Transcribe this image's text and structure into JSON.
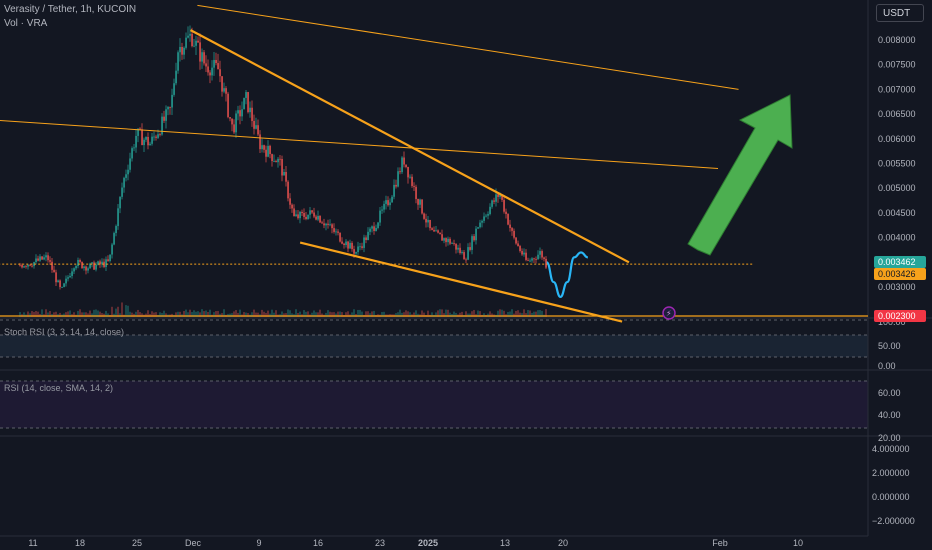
{
  "header": {
    "title": "Verasity / Tether, 1h, KUCOIN",
    "volume_label": "Vol · VRA",
    "currency_button": "USDT"
  },
  "indicators": {
    "stoch_rsi_label": "Stoch RSI (3, 3, 14, 14, close)",
    "rsi_label": "RSI (14, close, SMA, 14, 2)"
  },
  "colors": {
    "background": "#131722",
    "candle_up": "#26a69a",
    "candle_down": "#ef5350",
    "trendline": "#f7a21b",
    "projection_curve": "#29b6f6",
    "arrow": "#4caf50",
    "last_price": "#26a69a",
    "marker_price": "#f7a21b",
    "support_price": "#f23645"
  },
  "chart_data": {
    "type": "line",
    "title": "Verasity / Tether, 1h, KUCOIN",
    "xlabel": "",
    "ylabel": "",
    "x_ticks": [
      "11",
      "18",
      "25",
      "Dec",
      "9",
      "16",
      "23",
      "2025",
      "13",
      "20",
      "Feb",
      "10"
    ],
    "price_axis": {
      "ticks": [
        "0.008000",
        "0.007500",
        "0.007000",
        "0.006500",
        "0.006000",
        "0.005500",
        "0.005000",
        "0.004500",
        "0.004000",
        "0.003500",
        "0.003000"
      ],
      "ylim": [
        0.0023,
        0.0083
      ]
    },
    "price_tags": [
      {
        "label": "last",
        "value": "0.003462",
        "color": "#26a69a"
      },
      {
        "label": "marker",
        "value": "0.003426",
        "color": "#f7a21b"
      },
      {
        "label": "support",
        "value": "0.002300",
        "color": "#f23645"
      }
    ],
    "stoch_rsi_axis": [
      "100.00",
      "50.00",
      "0.00"
    ],
    "rsi_axis": [
      "60.00",
      "40.00",
      "20.00"
    ],
    "bottom_axis": [
      "4.000000",
      "2.000000",
      "0.000000",
      "−2.000000"
    ],
    "price_series": [
      {
        "x": "Nov 9",
        "y": 0.00345
      },
      {
        "x": "Nov 11",
        "y": 0.0035
      },
      {
        "x": "Nov 13",
        "y": 0.0036
      },
      {
        "x": "Nov 15",
        "y": 0.0029
      },
      {
        "x": "Nov 17",
        "y": 0.0035
      },
      {
        "x": "Nov 19",
        "y": 0.0034
      },
      {
        "x": "Nov 22",
        "y": 0.0035
      },
      {
        "x": "Nov 24",
        "y": 0.0051
      },
      {
        "x": "Nov 26",
        "y": 0.0061
      },
      {
        "x": "Nov 28",
        "y": 0.0059
      },
      {
        "x": "Dec 1",
        "y": 0.0066
      },
      {
        "x": "Dec 2",
        "y": 0.0078
      },
      {
        "x": "Dec 4",
        "y": 0.0081
      },
      {
        "x": "Dec 6",
        "y": 0.0075
      },
      {
        "x": "Dec 8",
        "y": 0.0074
      },
      {
        "x": "Dec 10",
        "y": 0.0062
      },
      {
        "x": "Dec 12",
        "y": 0.0068
      },
      {
        "x": "Dec 14",
        "y": 0.0059
      },
      {
        "x": "Dec 17",
        "y": 0.0055
      },
      {
        "x": "Dec 19",
        "y": 0.0044
      },
      {
        "x": "Dec 22",
        "y": 0.0045
      },
      {
        "x": "Dec 25",
        "y": 0.0041
      },
      {
        "x": "Dec 28",
        "y": 0.0037
      },
      {
        "x": "Dec 31",
        "y": 0.0043
      },
      {
        "x": "Jan 2",
        "y": 0.0048
      },
      {
        "x": "Jan 4",
        "y": 0.0056
      },
      {
        "x": "Jan 6",
        "y": 0.0048
      },
      {
        "x": "Jan 8",
        "y": 0.0041
      },
      {
        "x": "Jan 11",
        "y": 0.0039
      },
      {
        "x": "Jan 13",
        "y": 0.0036
      },
      {
        "x": "Jan 15",
        "y": 0.0043
      },
      {
        "x": "Jan 18",
        "y": 0.0049
      },
      {
        "x": "Jan 20",
        "y": 0.004
      },
      {
        "x": "Jan 22",
        "y": 0.0035
      },
      {
        "x": "Jan 24",
        "y": 0.0037
      },
      {
        "x": "Jan 25",
        "y": 0.0034
      }
    ],
    "projection_curve": [
      {
        "x": "Jan 25",
        "y": 0.0035
      },
      {
        "x": "Jan 26",
        "y": 0.0031
      },
      {
        "x": "Jan 27",
        "y": 0.0028
      },
      {
        "x": "Jan 28",
        "y": 0.0031
      },
      {
        "x": "Jan 29",
        "y": 0.0036
      },
      {
        "x": "Jan 30",
        "y": 0.0037
      },
      {
        "x": "Jan 31",
        "y": 0.0036
      }
    ],
    "trendlines": [
      {
        "from": {
          "x": "Dec 4",
          "y": 0.0082
        },
        "to": {
          "x": "Feb 6",
          "y": 0.0035
        }
      },
      {
        "from": {
          "x": "Dec 20",
          "y": 0.0039
        },
        "to": {
          "x": "Feb 5",
          "y": 0.0023
        }
      },
      {
        "from": {
          "x": "Nov 3",
          "y": 0.0064
        },
        "to": {
          "x": "Feb 19",
          "y": 0.0054
        }
      },
      {
        "from": {
          "x": "Dec 5",
          "y": 0.0087
        },
        "to": {
          "x": "Feb 22",
          "y": 0.007
        }
      },
      {
        "from": {
          "x": "Nov 3",
          "y": 0.003462
        },
        "to": {
          "x": "Feb 24",
          "y": 0.003462
        }
      }
    ]
  }
}
